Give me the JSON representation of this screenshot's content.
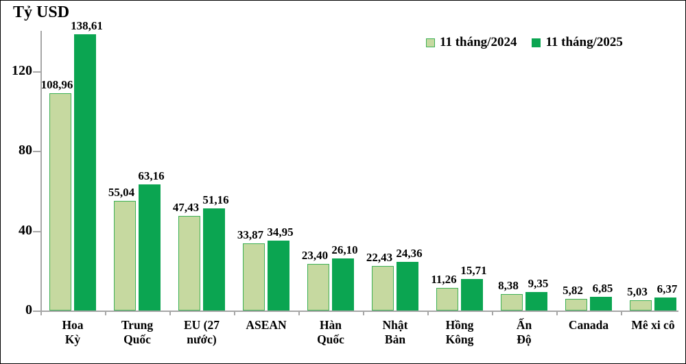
{
  "chart_data": {
    "type": "bar",
    "title": "Tỷ USD",
    "ylabel": "Tỷ USD",
    "xlabel": "",
    "categories": [
      "Hoa Kỳ",
      "Trung Quốc",
      "EU (27 nước)",
      "ASEAN",
      "Hàn Quốc",
      "Nhật Bản",
      "Hồng Kông",
      "Ấn Độ",
      "Canada",
      "Mê xi cô"
    ],
    "category_lines": [
      [
        "Hoa",
        "Kỳ"
      ],
      [
        "Trung",
        "Quốc"
      ],
      [
        "EU (27",
        "nước)"
      ],
      [
        "ASEAN"
      ],
      [
        "Hàn",
        "Quốc"
      ],
      [
        "Nhật",
        "Bản"
      ],
      [
        "Hồng",
        "Kông"
      ],
      [
        "Ấn",
        "Độ"
      ],
      [
        "Canada"
      ],
      [
        "Mê xi cô"
      ]
    ],
    "series": [
      {
        "name": "11 tháng/2024",
        "fill": "#c6d9a0",
        "border": "#3cb054",
        "values": [
          108.96,
          55.04,
          47.43,
          33.87,
          23.4,
          22.43,
          11.26,
          8.38,
          5.82,
          5.03
        ]
      },
      {
        "name": "11 tháng/2025",
        "fill": "#0ba551",
        "border": "#0ba551",
        "values": [
          138.61,
          63.16,
          51.16,
          34.95,
          26.1,
          24.36,
          15.71,
          9.35,
          6.85,
          6.37
        ]
      }
    ],
    "value_labels": [
      [
        "108,96",
        "55,04",
        "47,43",
        "33,87",
        "23,40",
        "22,43",
        "11,26",
        "8,38",
        "5,82",
        "5,03"
      ],
      [
        "138,61",
        "63,16",
        "51,16",
        "34,95",
        "26,10",
        "24,36",
        "15,71",
        "9,35",
        "6,85",
        "6,37"
      ]
    ],
    "yticks": [
      0,
      40,
      80,
      120
    ],
    "ylim": [
      0,
      140
    ],
    "decimal_separator": ",",
    "grid": false,
    "legend_position": "top-right",
    "axis_color": "#a6a6a6",
    "background": "#ffffff"
  }
}
